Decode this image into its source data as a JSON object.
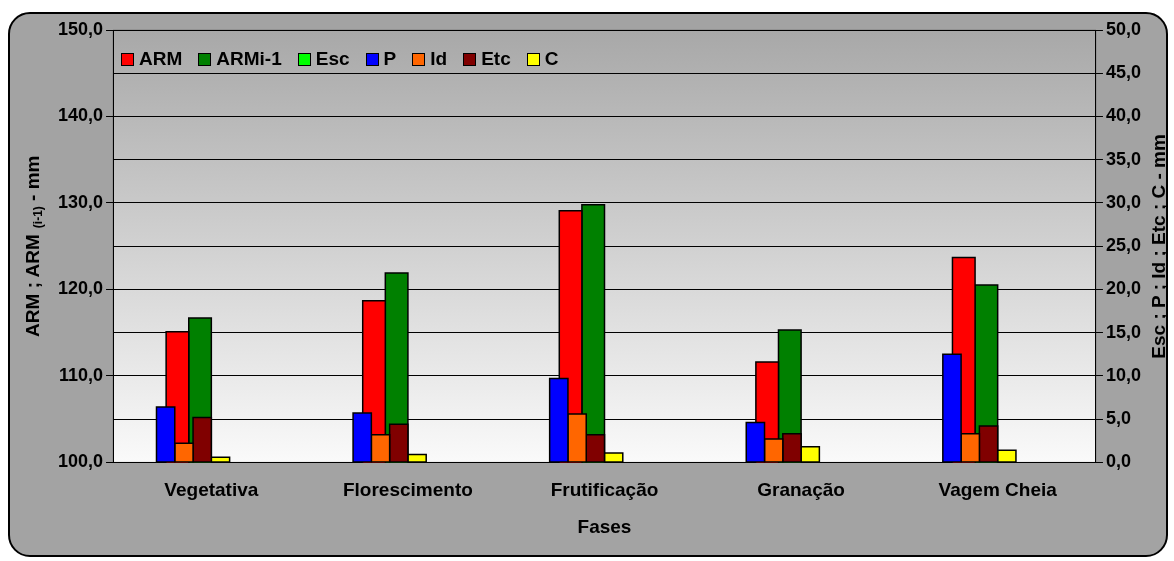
{
  "chart_data": {
    "type": "bar",
    "xlabel": "Fases",
    "ylabel": "ARM ; ARM $_{(i-1)}$ - mm",
    "y2label": "Esc ; P ; Id ; Etc ; C - mm",
    "categories": [
      "Vegetativa",
      "Florescimento",
      "Frutificação",
      "Granação",
      "Vagem Cheia"
    ],
    "series": [
      {
        "name": "ARM",
        "color": "#ff0000",
        "values": [
          115.1,
          118.7,
          129.1,
          111.6,
          123.7
        ]
      },
      {
        "name": "ARMi-1",
        "color": "#008000",
        "values": [
          116.7,
          121.9,
          129.8,
          115.3,
          120.5
        ]
      },
      {
        "name": "Esc",
        "color": "#00ff00",
        "axis": "y2",
        "values": [
          0,
          0,
          0,
          0,
          0
        ]
      },
      {
        "name": "P",
        "color": "#0000ff",
        "axis": "y2",
        "values": [
          6.4,
          5.7,
          9.7,
          4.6,
          12.5
        ]
      },
      {
        "name": "Id",
        "color": "#ff6600",
        "axis": "y2",
        "values": [
          2.2,
          3.2,
          5.6,
          2.7,
          3.3
        ]
      },
      {
        "name": "Etc",
        "color": "#800000",
        "axis": "y2",
        "values": [
          5.2,
          4.4,
          3.2,
          3.3,
          4.2
        ]
      },
      {
        "name": "C",
        "color": "#ffff00",
        "axis": "y2",
        "values": [
          0.6,
          0.9,
          1.1,
          1.8,
          1.4
        ]
      }
    ],
    "ylim": [
      100,
      150
    ],
    "yticks": [
      {
        "value": 100,
        "label": "100,0"
      },
      {
        "value": 110,
        "label": "110,0"
      },
      {
        "value": 120,
        "label": "120,0"
      },
      {
        "value": 130,
        "label": "130,0"
      },
      {
        "value": 140,
        "label": "140,0"
      },
      {
        "value": 150,
        "label": "150,0"
      }
    ],
    "y2lim": [
      0,
      50
    ],
    "y2ticks": [
      {
        "value": 0,
        "label": "0,0"
      },
      {
        "value": 5,
        "label": "5,0"
      },
      {
        "value": 10,
        "label": "10,0"
      },
      {
        "value": 15,
        "label": "15,0"
      },
      {
        "value": 20,
        "label": "20,0"
      },
      {
        "value": 25,
        "label": "25,0"
      },
      {
        "value": 30,
        "label": "30,0"
      },
      {
        "value": 35,
        "label": "35,0"
      },
      {
        "value": 40,
        "label": "40,0"
      },
      {
        "value": 45,
        "label": "45,0"
      },
      {
        "value": 50,
        "label": "50,0"
      }
    ],
    "grid": "y",
    "legend": "top left"
  }
}
